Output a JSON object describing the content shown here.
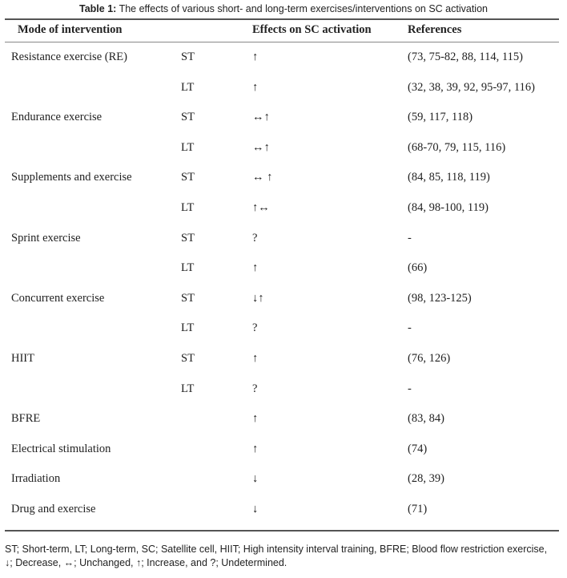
{
  "caption": {
    "label": "Table 1:",
    "text": " The effects of various short- and long-term exercises/interventions on SC activation"
  },
  "headers": {
    "mode": "Mode of intervention",
    "effects": "Effects on SC activation",
    "references": "References"
  },
  "rows": [
    {
      "mode": "Resistance exercise (RE)",
      "term": "ST",
      "effect": "↑",
      "refs": "(73, 75-82, 88, 114, 115)"
    },
    {
      "mode": "",
      "term": "LT",
      "effect": "↑",
      "refs": "(32, 38, 39, 92, 95-97, 116)"
    },
    {
      "mode": "Endurance exercise",
      "term": "ST",
      "effect": "↔↑",
      "refs": "(59, 117, 118)"
    },
    {
      "mode": "",
      "term": "LT",
      "effect": "↔↑",
      "refs": "(68-70, 79, 115, 116)"
    },
    {
      "mode": "Supplements and exercise",
      "term": "ST",
      "effect": "↔ ↑",
      "refs": "(84, 85, 118, 119)"
    },
    {
      "mode": "",
      "term": "LT",
      "effect": "↑↔",
      "refs": "(84, 98-100, 119)"
    },
    {
      "mode": "Sprint exercise",
      "term": "ST",
      "effect": "?",
      "refs": "-"
    },
    {
      "mode": "",
      "term": "LT",
      "effect": "↑",
      "refs": "(66)"
    },
    {
      "mode": "Concurrent exercise",
      "term": "ST",
      "effect": "↓↑",
      "refs": "(98, 123-125)"
    },
    {
      "mode": "",
      "term": "LT",
      "effect": "?",
      "refs": "-"
    },
    {
      "mode": "HIIT",
      "term": "ST",
      "effect": "↑",
      "refs": "(76, 126)"
    },
    {
      "mode": "",
      "term": "LT",
      "effect": "?",
      "refs": "-"
    },
    {
      "mode": "BFRE",
      "term": "",
      "effect": "↑",
      "refs": "(83, 84)"
    },
    {
      "mode": "Electrical stimulation",
      "term": "",
      "effect": "↑",
      "refs": "(74)"
    },
    {
      "mode": "Irradiation",
      "term": "",
      "effect": "↓",
      "refs": "(28, 39)"
    },
    {
      "mode": "Drug and exercise",
      "term": "",
      "effect": "↓",
      "refs": "(71)"
    }
  ],
  "footnote": {
    "line1": "ST; Short-term, LT; Long-term, SC; Satellite cell, HIIT; High intensity interval training, BFRE; Blood flow restriction exercise,",
    "line2": "↓; Decrease, ↔; Unchanged, ↑; Increase, and ?; Undetermined."
  }
}
